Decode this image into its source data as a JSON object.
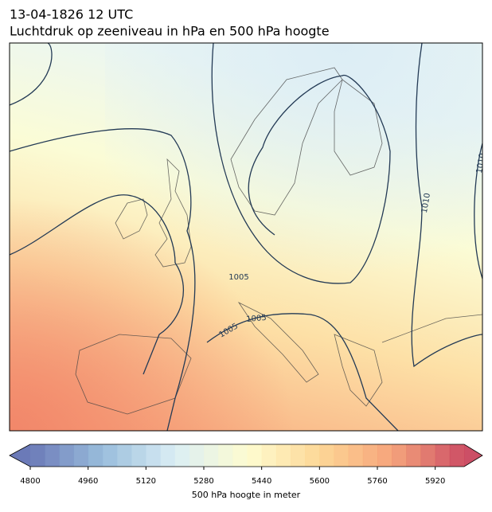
{
  "header": {
    "line1": "13-04-1826 12 UTC",
    "line2": "Luchtdruk op zeeniveau in hPa en 500 hPa hoogte"
  },
  "map": {
    "contour_labels": [
      1005,
      1005,
      1005,
      1010,
      1010
    ]
  },
  "colorbar": {
    "label": "500 hPa hoogte in meter",
    "range": [
      4800,
      6000
    ],
    "step": 40,
    "ticks": [
      4800,
      4960,
      5120,
      5280,
      5440,
      5600,
      5760,
      5920
    ],
    "colors": [
      "#5b6cb0",
      "#8fb6d8",
      "#d6ecf4",
      "#fefccb",
      "#fdd38b",
      "#f59a6d",
      "#c73c55"
    ]
  }
}
